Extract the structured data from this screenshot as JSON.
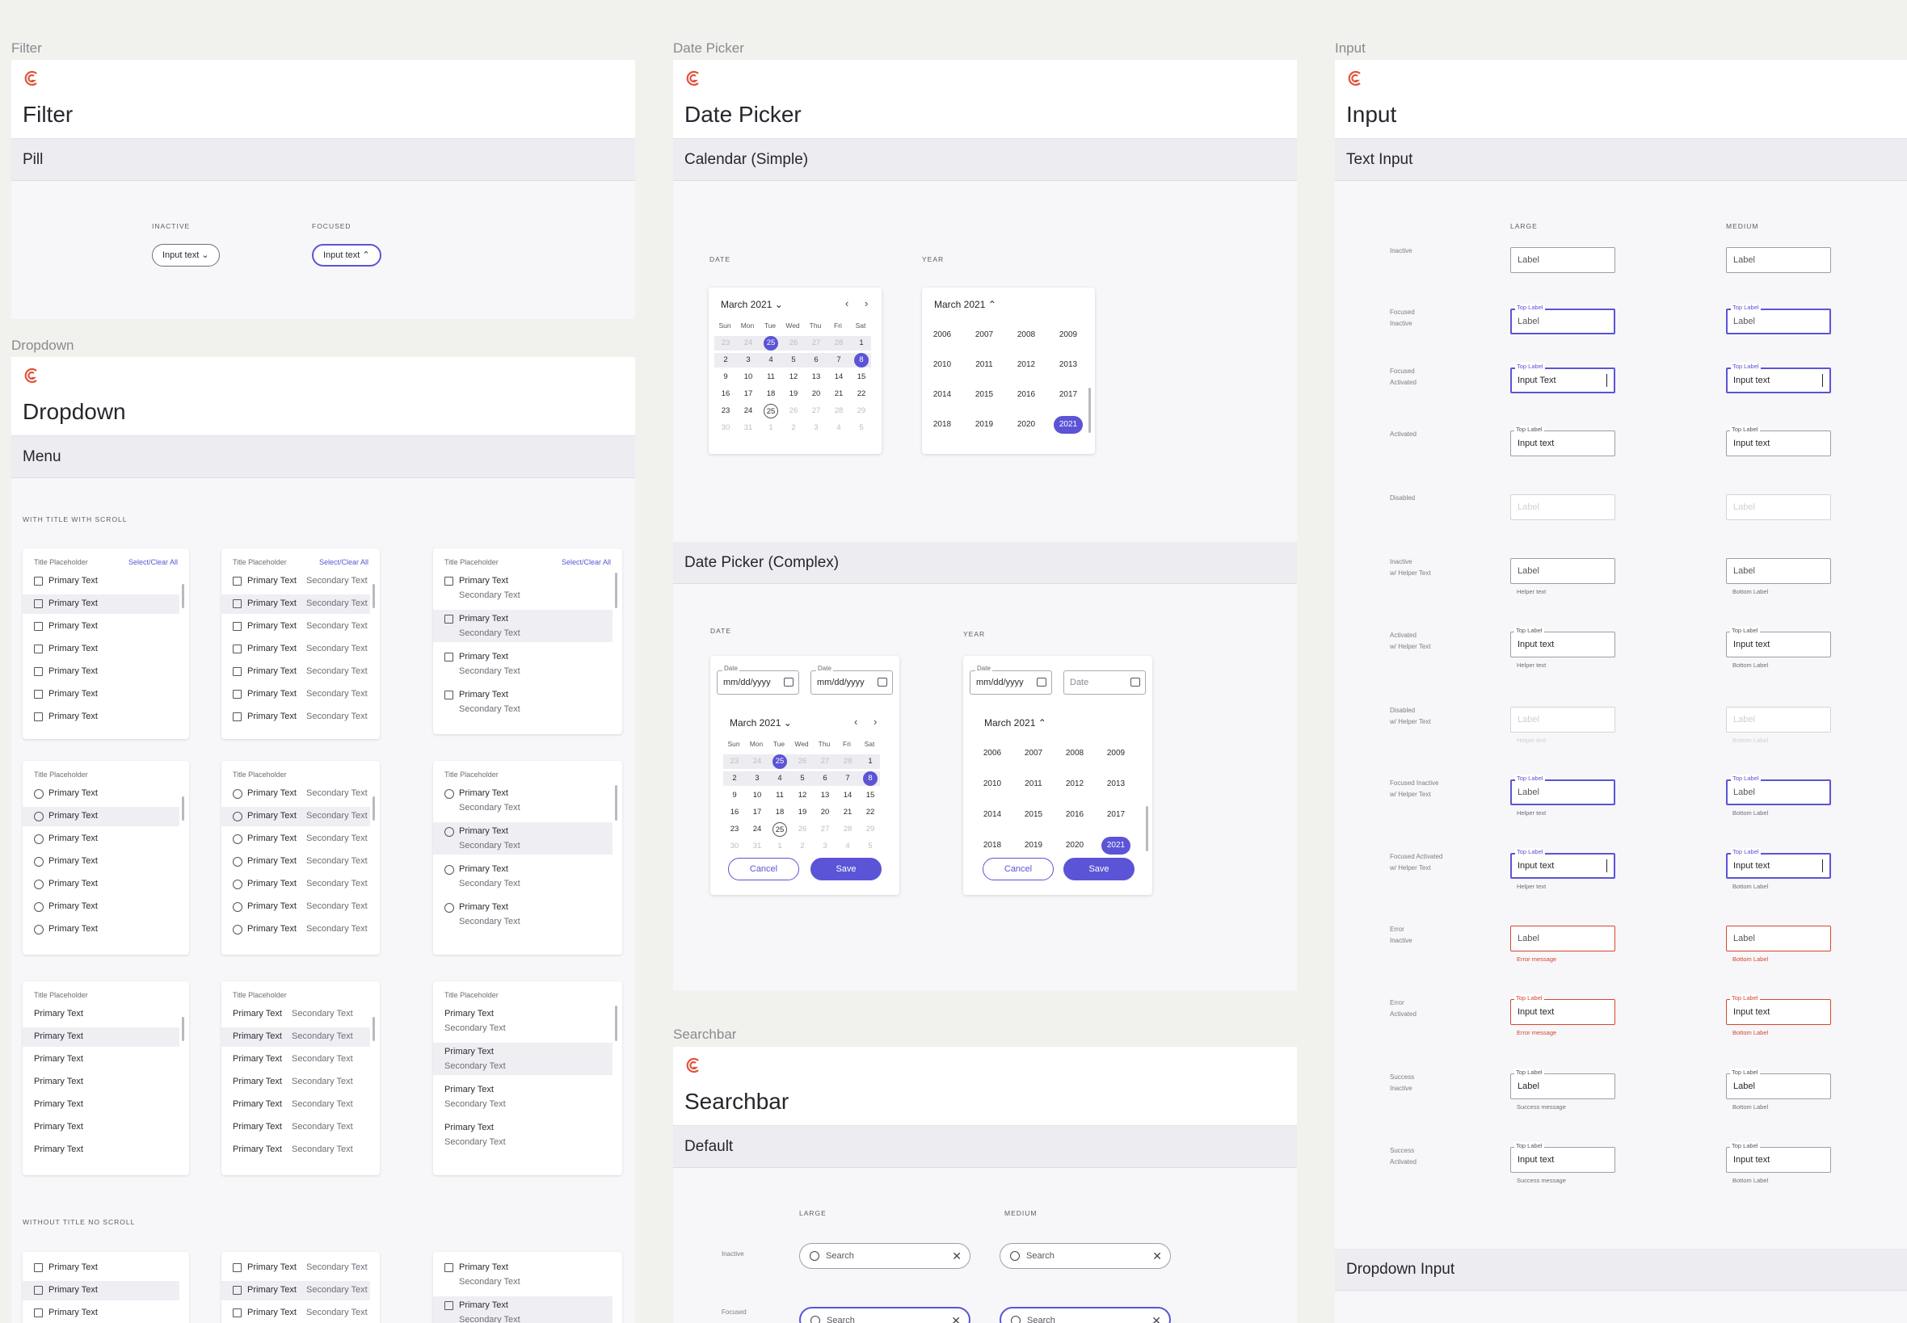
{
  "filter": {
    "label": "Filter",
    "title": "Filter",
    "section": "Pill",
    "states": [
      "INACTIVE",
      "FOCUSED"
    ],
    "pills": [
      {
        "text": "Input text",
        "chevron": "⌄"
      },
      {
        "text": "Input text",
        "chevron": "⌃"
      }
    ]
  },
  "dropdown": {
    "label": "Dropdown",
    "title": "Dropdown",
    "section": "Menu",
    "group_with": "WITH TITLE WITH SCROLL",
    "group_without": "WITHOUT TITLE NO SCROLL",
    "card_title": "Title Placeholder",
    "select_all": "Select/Clear All",
    "primary": "Primary Text",
    "secondary": "Secondary Text"
  },
  "datepicker": {
    "label": "Date Picker",
    "title": "Date Picker",
    "section_simple": "Calendar (Simple)",
    "section_complex": "Date Picker (Complex)",
    "col_date": "DATE",
    "col_year": "YEAR",
    "month": "March 2021",
    "weekdays": [
      "Sun",
      "Mon",
      "Tue",
      "Wed",
      "Thu",
      "Fri",
      "Sat"
    ],
    "weeks": [
      [
        "23",
        "24",
        "25",
        "26",
        "27",
        "28",
        "1"
      ],
      [
        "2",
        "3",
        "4",
        "5",
        "6",
        "7",
        "8"
      ],
      [
        "9",
        "10",
        "11",
        "12",
        "13",
        "14",
        "15"
      ],
      [
        "16",
        "17",
        "18",
        "19",
        "20",
        "21",
        "22"
      ],
      [
        "23",
        "24",
        "25",
        "26",
        "27",
        "28",
        "29"
      ],
      [
        "30",
        "31",
        "1",
        "2",
        "3",
        "4",
        "5"
      ]
    ],
    "years": [
      [
        "2006",
        "2007",
        "2008",
        "2009"
      ],
      [
        "2010",
        "2011",
        "2012",
        "2013"
      ],
      [
        "2014",
        "2015",
        "2016",
        "2017"
      ],
      [
        "2018",
        "2019",
        "2020",
        "2021"
      ]
    ],
    "field_label": "Date",
    "field_value": "mm/dd/yyyy",
    "field_placeholder": "Date",
    "cancel": "Cancel",
    "save": "Save"
  },
  "searchbar": {
    "label": "Searchbar",
    "title": "Searchbar",
    "section": "Default",
    "col_large": "LARGE",
    "col_medium": "MEDIUM",
    "state_inactive": "Inactive",
    "state_focused": "Focused",
    "placeholder": "Search"
  },
  "input": {
    "label": "Input",
    "title": "Input",
    "section": "Text Input",
    "section2": "Dropdown Input",
    "col_large": "LARGE",
    "col_medium": "MEDIUM",
    "rows": [
      {
        "state": "Inactive",
        "text": "Label",
        "top": "",
        "kind": "plain",
        "helpL": "",
        "helpM": ""
      },
      {
        "state": "Focused\nInactive",
        "text": "Label",
        "top": "Top Label",
        "kind": "focus",
        "helpL": "",
        "helpM": ""
      },
      {
        "state": "Focused\nActivated",
        "text": "Input Text",
        "textM": "Input text",
        "top": "Top Label",
        "kind": "focus-val",
        "helpL": "",
        "helpM": ""
      },
      {
        "state": "Activated",
        "text": "Input text",
        "top": "Top Label",
        "kind": "val",
        "helpL": "",
        "helpM": ""
      },
      {
        "state": "Disabled",
        "text": "Label",
        "top": "",
        "kind": "dis",
        "helpL": "",
        "helpM": ""
      },
      {
        "state": "Inactive\nw/ Helper Text",
        "text": "Label",
        "top": "",
        "kind": "plain",
        "helpL": "Helper text",
        "helpM": "Bottom Label"
      },
      {
        "state": "Activated\nw/ Helper Text",
        "text": "Input text",
        "top": "Top Label",
        "kind": "val",
        "helpL": "Helper text",
        "helpM": "Bottom Label"
      },
      {
        "state": "Disabled\nw/ Helper Text",
        "text": "Label",
        "top": "",
        "kind": "dis",
        "helpL": "Helper text",
        "helpM": "Bottom Label"
      },
      {
        "state": "Focused Inactive\nw/ Helper Text",
        "text": "Label",
        "top": "Top Label",
        "kind": "focus",
        "helpL": "Helper text",
        "helpM": "Bottom Label"
      },
      {
        "state": "Focused Activated\nw/ Helper Text",
        "text": "Input text",
        "top": "Top Label",
        "kind": "focus-val",
        "helpL": "Helper text",
        "helpM": "Bottom Label"
      },
      {
        "state": "Error\nInactive",
        "text": "Label",
        "top": "",
        "kind": "err",
        "helpL": "Error message",
        "helpM": "Bottom Label"
      },
      {
        "state": "Error\nActivated",
        "text": "Input text",
        "top": "Top Label",
        "kind": "err-val",
        "helpL": "Error message",
        "helpM": "Bottom Label"
      },
      {
        "state": "Success\nInactive",
        "text": "Label",
        "top": "Top Label",
        "kind": "val",
        "helpL": "Success message",
        "helpM": "Bottom Label"
      },
      {
        "state": "Success\nActivated",
        "text": "Input text",
        "top": "Top Label",
        "kind": "val",
        "helpL": "Success message",
        "helpM": "Bottom Label"
      }
    ]
  },
  "colors": {
    "accent": "#5b54d6",
    "error": "#d8452f",
    "logo": "#e0533d"
  }
}
